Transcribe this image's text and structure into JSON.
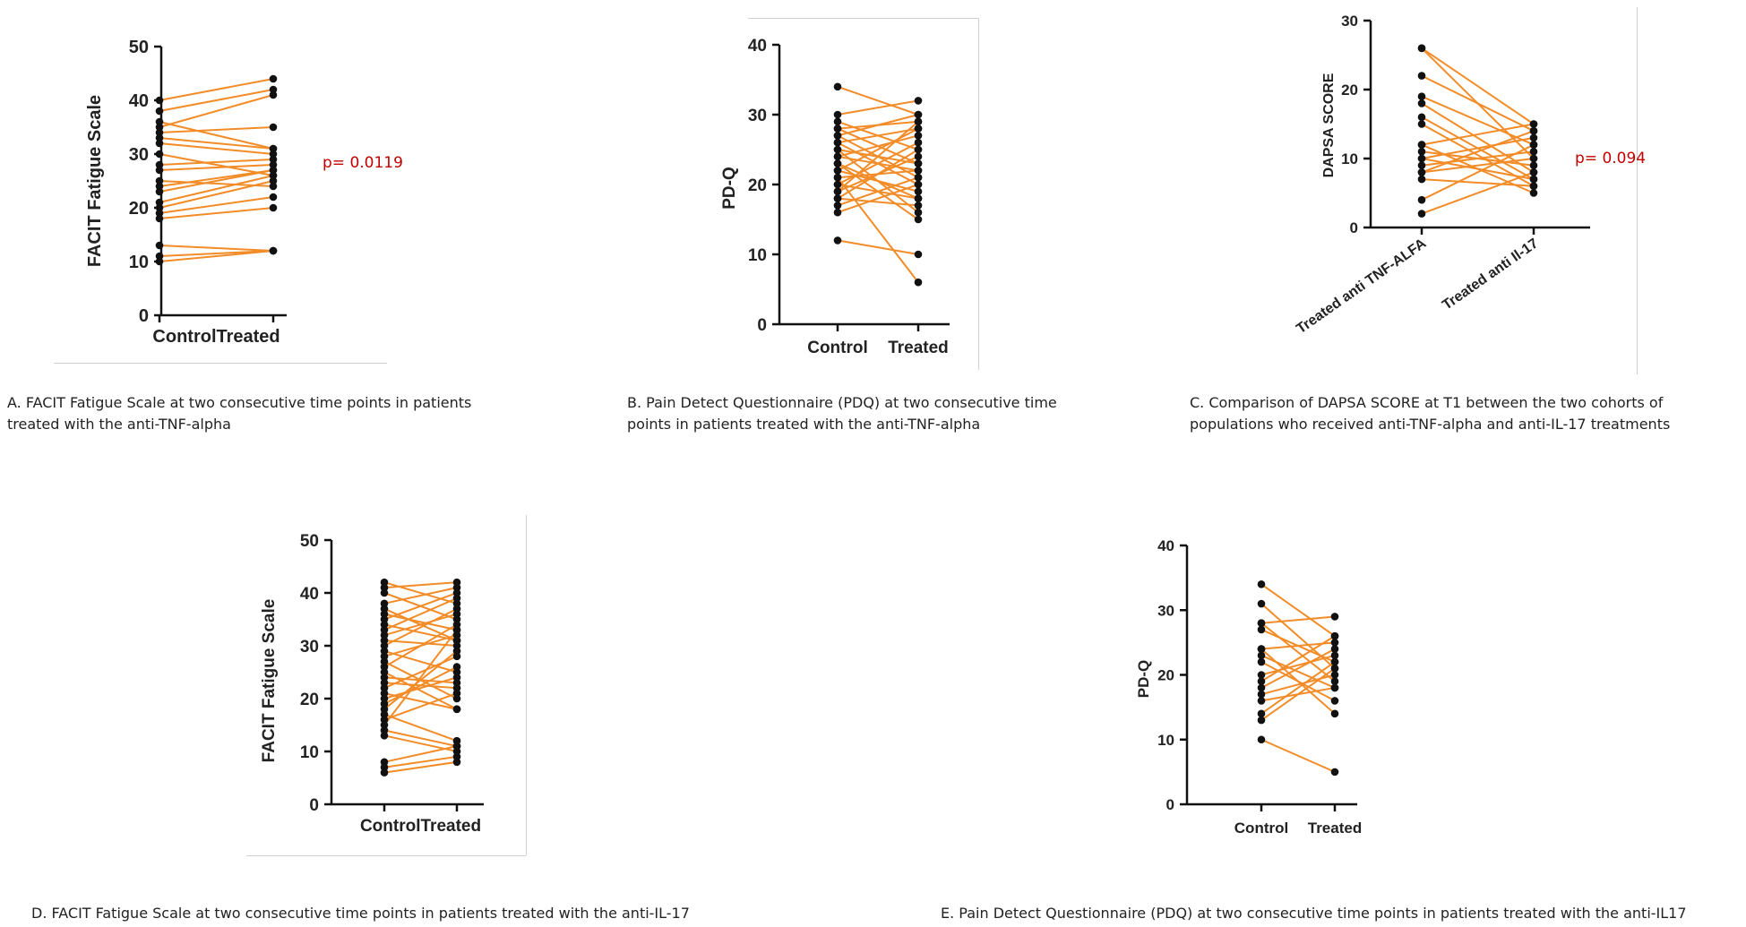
{
  "colors": {
    "line": "#f28c28",
    "point": "#111111",
    "axis": "#111111",
    "pvalue": "#c00000"
  },
  "captions": {
    "a_line1": "A. FACIT Fatigue Scale at two consecutive time points in patients",
    "a_line2": "treated with the anti-TNF-alpha",
    "b_line1": "B.  Pain Detect Questionnaire (PDQ) at two consecutive time",
    "b_line2": "points in patients treated with the anti-TNF-alpha",
    "c_line1": "C. Comparison of DAPSA SCORE at T1 between the two cohorts of",
    "c_line2": "populations who received anti-TNF-alpha and anti-IL-17 treatments",
    "d": "D.  FACIT Fatigue Scale at two consecutive time points in patients treated with the anti-IL-17",
    "e": "E. Pain Detect Questionnaire (PDQ) at two consecutive time points in patients treated with the anti-IL17"
  },
  "pvalues": {
    "a": "p= 0.0119",
    "c": "p= 0.094"
  },
  "chart_data": [
    {
      "id": "A",
      "type": "line",
      "ylabel": "FACIT Fatigue Scale",
      "xlabel": "",
      "categories": [
        "Control",
        "Treated"
      ],
      "ylim": [
        0,
        50
      ],
      "yticks": [
        0,
        10,
        20,
        30,
        40,
        50
      ],
      "pairs": [
        [
          40,
          44
        ],
        [
          38,
          42
        ],
        [
          35,
          41
        ],
        [
          34,
          35
        ],
        [
          33,
          31
        ],
        [
          32,
          30
        ],
        [
          28,
          29
        ],
        [
          27,
          28
        ],
        [
          24,
          27
        ],
        [
          23,
          27
        ],
        [
          21,
          26
        ],
        [
          20,
          25
        ],
        [
          19,
          22
        ],
        [
          18,
          20
        ],
        [
          13,
          12
        ],
        [
          11,
          12
        ],
        [
          10,
          12
        ],
        [
          36,
          31
        ],
        [
          30,
          26
        ],
        [
          25,
          24
        ]
      ]
    },
    {
      "id": "B",
      "type": "line",
      "ylabel": "PD-Q",
      "xlabel": "",
      "categories": [
        "Control",
        "Treated"
      ],
      "ylim": [
        0,
        40
      ],
      "yticks": [
        0,
        10,
        20,
        30,
        40
      ],
      "pairs": [
        [
          34,
          30
        ],
        [
          30,
          32
        ],
        [
          29,
          25
        ],
        [
          28,
          29
        ],
        [
          27,
          21
        ],
        [
          26,
          28
        ],
        [
          25,
          23
        ],
        [
          24,
          27
        ],
        [
          23,
          18
        ],
        [
          22,
          19
        ],
        [
          21,
          22
        ],
        [
          20,
          26
        ],
        [
          19,
          24
        ],
        [
          18,
          17
        ],
        [
          17,
          21
        ],
        [
          16,
          20
        ],
        [
          12,
          10
        ],
        [
          21,
          6
        ],
        [
          27,
          30
        ],
        [
          25,
          16
        ],
        [
          24,
          22
        ],
        [
          19,
          29
        ],
        [
          23,
          15
        ],
        [
          20,
          18
        ],
        [
          22,
          28
        ],
        [
          18,
          25
        ],
        [
          28,
          23
        ],
        [
          26,
          20
        ]
      ]
    },
    {
      "id": "C",
      "type": "line",
      "ylabel": "DAPSA SCORE",
      "xlabel": "",
      "categories": [
        "Treated anti TNF-ALFA",
        "Treated anti Il-17"
      ],
      "ylim": [
        0,
        30
      ],
      "yticks": [
        0,
        10,
        20,
        30
      ],
      "pairs": [
        [
          26,
          15
        ],
        [
          26,
          10
        ],
        [
          22,
          14
        ],
        [
          19,
          12
        ],
        [
          18,
          8
        ],
        [
          16,
          7
        ],
        [
          15,
          6
        ],
        [
          12,
          15
        ],
        [
          11,
          9
        ],
        [
          10,
          13
        ],
        [
          9,
          11
        ],
        [
          8,
          10
        ],
        [
          7,
          6
        ],
        [
          4,
          12
        ],
        [
          2,
          8
        ],
        [
          12,
          5
        ],
        [
          10,
          7
        ],
        [
          8,
          14
        ]
      ]
    },
    {
      "id": "D",
      "type": "line",
      "ylabel": "FACIT Fatigue Scale",
      "xlabel": "",
      "categories": [
        "Control",
        "Treated"
      ],
      "ylim": [
        0,
        50
      ],
      "yticks": [
        0,
        10,
        20,
        30,
        40,
        50
      ],
      "pairs": [
        [
          42,
          38
        ],
        [
          41,
          42
        ],
        [
          40,
          35
        ],
        [
          38,
          41
        ],
        [
          36,
          33
        ],
        [
          35,
          40
        ],
        [
          34,
          31
        ],
        [
          33,
          39
        ],
        [
          32,
          36
        ],
        [
          31,
          30
        ],
        [
          30,
          37
        ],
        [
          29,
          25
        ],
        [
          28,
          32
        ],
        [
          27,
          20
        ],
        [
          26,
          34
        ],
        [
          25,
          18
        ],
        [
          24,
          23
        ],
        [
          23,
          22
        ],
        [
          22,
          28
        ],
        [
          20,
          24
        ],
        [
          19,
          26
        ],
        [
          18,
          29
        ],
        [
          17,
          12
        ],
        [
          16,
          21
        ],
        [
          15,
          33
        ],
        [
          14,
          11
        ],
        [
          13,
          10
        ],
        [
          8,
          11
        ],
        [
          7,
          9
        ],
        [
          6,
          8
        ],
        [
          37,
          31
        ],
        [
          21,
          18
        ]
      ]
    },
    {
      "id": "E",
      "type": "line",
      "ylabel": "PD-Q",
      "xlabel": "",
      "categories": [
        "Control",
        "Treated"
      ],
      "ylim": [
        0,
        40
      ],
      "yticks": [
        0,
        10,
        20,
        30,
        40
      ],
      "pairs": [
        [
          34,
          26
        ],
        [
          31,
          21
        ],
        [
          28,
          29
        ],
        [
          27,
          22
        ],
        [
          24,
          25
        ],
        [
          23,
          18
        ],
        [
          22,
          16
        ],
        [
          20,
          23
        ],
        [
          19,
          26
        ],
        [
          18,
          24
        ],
        [
          17,
          20
        ],
        [
          16,
          18
        ],
        [
          14,
          22
        ],
        [
          13,
          21
        ],
        [
          10,
          5
        ],
        [
          24,
          14
        ],
        [
          28,
          19
        ]
      ]
    }
  ]
}
